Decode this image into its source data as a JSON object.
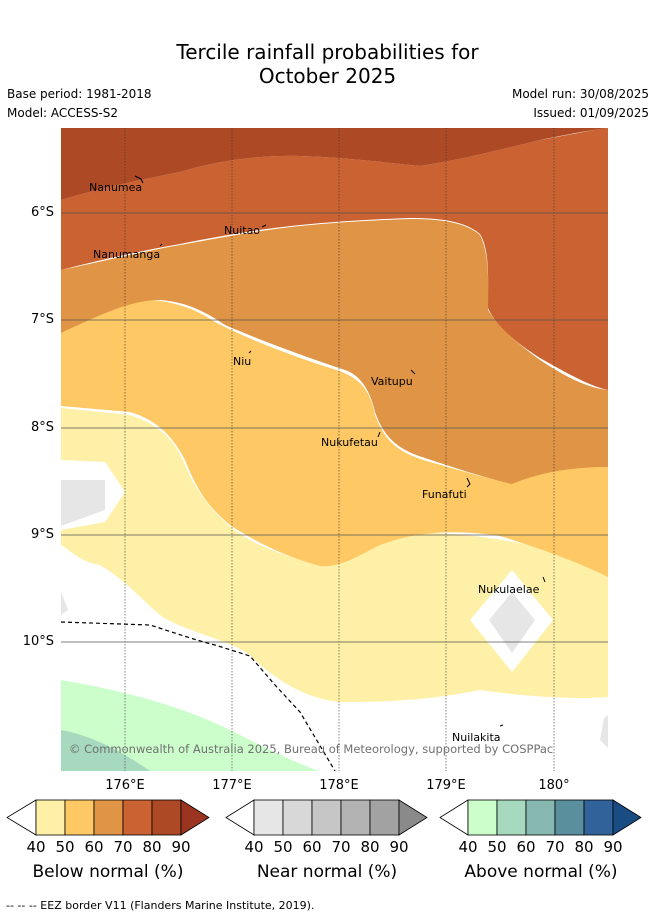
{
  "title_line1": "Tercile rainfall probabilities for",
  "title_line2": "October 2025",
  "base_period": "Base period: 1981-2018",
  "model": "Model: ACCESS-S2",
  "model_run": "Model run: 30/08/2025",
  "issued": "Issued: 01/09/2025",
  "map": {
    "lat_labels": [
      "6°S",
      "7°S",
      "8°S",
      "9°S",
      "10°S"
    ],
    "lon_labels": [
      "176°E",
      "177°E",
      "178°E",
      "179°E",
      "180°"
    ],
    "places": [
      "Nanumea",
      "Nuitao",
      "Nanumanga",
      "Niu",
      "Vaitupu",
      "Nukufetau",
      "Funafuti",
      "Nukulaelae",
      "Nuilakita"
    ],
    "copyright": "© Commonwealth of Australia 2025, Bureau of Meteorology, supported by COSPPac"
  },
  "legends": [
    {
      "title": "Below normal (%)",
      "ticks": [
        "40",
        "50",
        "60",
        "70",
        "80",
        "90"
      ],
      "colors": [
        "#fff0a8",
        "#fec965",
        "#e09445",
        "#cb6231",
        "#ae4926",
        "#9c3422"
      ]
    },
    {
      "title": "Near normal (%)",
      "ticks": [
        "40",
        "50",
        "60",
        "70",
        "80",
        "90"
      ],
      "colors": [
        "#e6e6e6",
        "#d8d8d8",
        "#c6c6c6",
        "#b3b3b3",
        "#a2a2a2",
        "#8a8a8a"
      ]
    },
    {
      "title": "Above normal (%)",
      "ticks": [
        "40",
        "50",
        "60",
        "70",
        "80",
        "90"
      ],
      "colors": [
        "#ccfecc",
        "#a6d9be",
        "#86b8b0",
        "#5a909e",
        "#31639a",
        "#1a4c84"
      ]
    }
  ],
  "footer": "--  --  -- EEZ border V11 (Flanders Marine Institute, 2019)."
}
